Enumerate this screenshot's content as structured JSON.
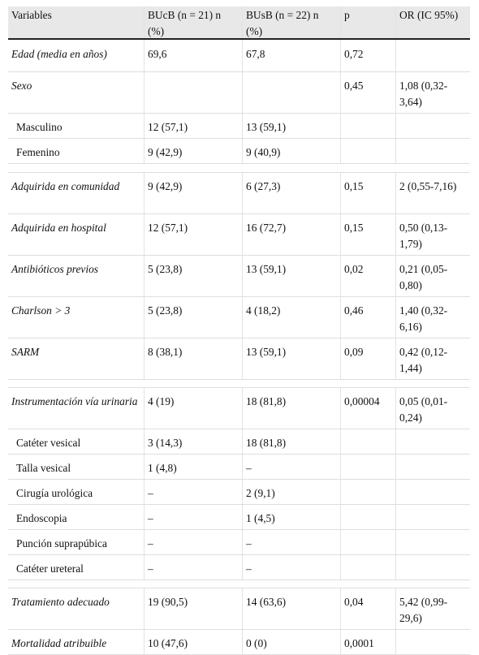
{
  "table": {
    "headers": [
      "Variables",
      "BUcB (n = 21) n (%)",
      "BUsB (n = 22) n (%)",
      "p",
      "OR (IC 95%)"
    ],
    "rows": [
      {
        "variable": "Edad (media en años)",
        "bucb": "69,6",
        "busb": "67,8",
        "p": "0,72",
        "or": ""
      },
      {
        "variable": "Sexo",
        "bucb": "",
        "busb": "",
        "p": "0,45",
        "or": "1,08 (0,32-3,64)"
      },
      {
        "variable": "Masculino",
        "bucb": "12 (57,1)",
        "busb": "13 (59,1)",
        "p": "",
        "or": ""
      },
      {
        "variable": "Femenino",
        "bucb": "9 (42,9)",
        "busb": "9 (40,9)",
        "p": "",
        "or": ""
      },
      {
        "variable": "Adquirida en comunidad",
        "bucb": "9 (42,9)",
        "busb": "6 (27,3)",
        "p": "0,15",
        "or": "2 (0,55-7,16)"
      },
      {
        "variable": "Adquirida en hospital",
        "bucb": "12 (57,1)",
        "busb": "16 (72,7)",
        "p": "0,15",
        "or": "0,50 (0,13-1,79)"
      },
      {
        "variable": "Antibióticos previos",
        "bucb": "5 (23,8)",
        "busb": "13 (59,1)",
        "p": "0,02",
        "or": "0,21 (0,05-0,80)"
      },
      {
        "variable": "Charlson > 3",
        "bucb": "5 (23,8)",
        "busb": "4 (18,2)",
        "p": "0,46",
        "or": "1,40 (0,32-6,16)"
      },
      {
        "variable": "SARM",
        "bucb": "8 (38,1)",
        "busb": "13 (59,1)",
        "p": "0,09",
        "or": "0,42 (0,12-1,44)"
      },
      {
        "variable": "Instrumentación vía urinaria",
        "bucb": "4 (19)",
        "busb": "18 (81,8)",
        "p": "0,00004",
        "or": "0,05 (0,01-0,24)"
      },
      {
        "variable": "Catéter vesical",
        "bucb": "3 (14,3)",
        "busb": "18 (81,8)",
        "p": "",
        "or": ""
      },
      {
        "variable": "Talla vesical",
        "bucb": "1 (4,8)",
        "busb": "–",
        "p": "",
        "or": ""
      },
      {
        "variable": "Cirugía urológica",
        "bucb": "–",
        "busb": "2 (9,1)",
        "p": "",
        "or": ""
      },
      {
        "variable": "Endoscopia",
        "bucb": "–",
        "busb": "1 (4,5)",
        "p": "",
        "or": ""
      },
      {
        "variable": "Punción suprapúbica",
        "bucb": "–",
        "busb": "–",
        "p": "",
        "or": ""
      },
      {
        "variable": "Catéter ureteral",
        "bucb": "–",
        "busb": "–",
        "p": "",
        "or": ""
      },
      {
        "variable": "Tratamiento adecuado",
        "bucb": "19 (90,5)",
        "busb": "14 (63,6)",
        "p": "0,04",
        "or": "5,42 (0,99-29,6)"
      },
      {
        "variable": "Mortalidad atribuible",
        "bucb": "10 (47,6)",
        "busb": "0 (0)",
        "p": "0,0001",
        "or": ""
      }
    ]
  }
}
